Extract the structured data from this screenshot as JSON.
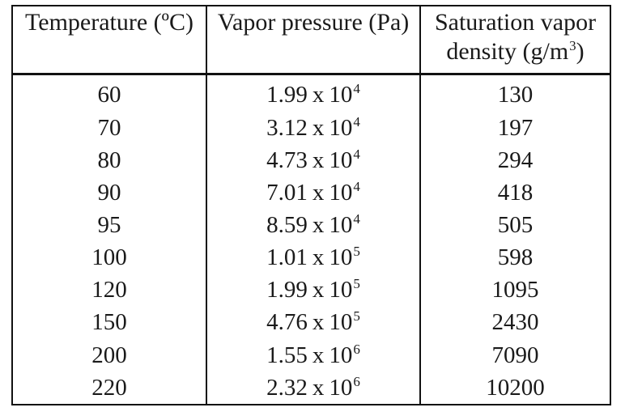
{
  "table": {
    "headers": {
      "temperature": "Temperature (ºC)",
      "vapor_pressure": "Vapor pressure (Pa)",
      "density_line1": "Saturation vapor",
      "density_line2": "density (g/m",
      "density_sup": "3",
      "density_close": ")"
    },
    "rows": [
      {
        "temp": "60",
        "mantissa": "1.99",
        "times": "x",
        "base": "10",
        "exp": "4",
        "density": "130"
      },
      {
        "temp": "70",
        "mantissa": "3.12",
        "times": "x",
        "base": "10",
        "exp": "4",
        "density": "197"
      },
      {
        "temp": "80",
        "mantissa": "4.73",
        "times": "x",
        "base": "10",
        "exp": "4",
        "density": "294"
      },
      {
        "temp": "90",
        "mantissa": "7.01",
        "times": "x",
        "base": "10",
        "exp": "4",
        "density": "418"
      },
      {
        "temp": "95",
        "mantissa": "8.59",
        "times": "x",
        "base": "10",
        "exp": "4",
        "density": "505"
      },
      {
        "temp": "100",
        "mantissa": "1.01",
        "times": "x",
        "base": "10",
        "exp": "5",
        "density": "598"
      },
      {
        "temp": "120",
        "mantissa": "1.99",
        "times": "x",
        "base": "10",
        "exp": "5",
        "density": "1095"
      },
      {
        "temp": "150",
        "mantissa": "4.76",
        "times": "x",
        "base": "10",
        "exp": "5",
        "density": "2430"
      },
      {
        "temp": "200",
        "mantissa": "1.55",
        "times": "x",
        "base": "10",
        "exp": "6",
        "density": "7090"
      },
      {
        "temp": "220",
        "mantissa": "2.32",
        "times": "x",
        "base": "10",
        "exp": "6",
        "density": "10200"
      }
    ]
  }
}
